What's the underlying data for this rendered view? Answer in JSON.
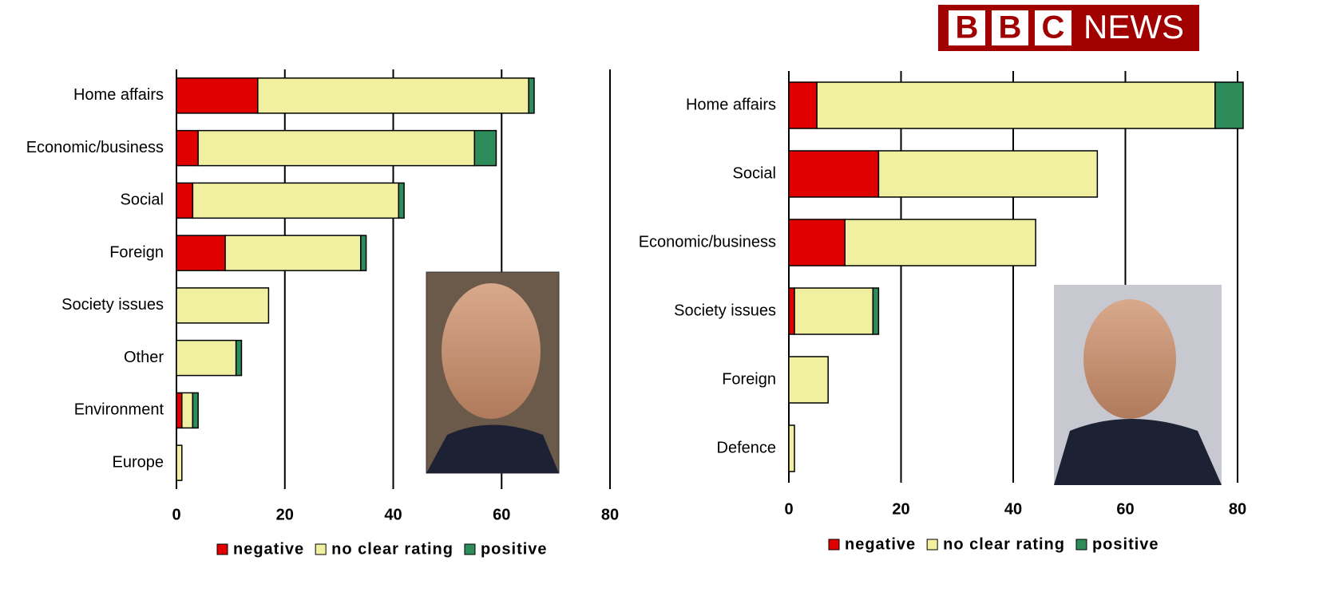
{
  "header": {
    "logo_boxes": [
      "B",
      "B",
      "C"
    ],
    "logo_word": "NEWS"
  },
  "chart_data": [
    {
      "type": "stacked-barh",
      "categories": [
        "Home affairs",
        "Economic/business",
        "Social",
        "Foreign",
        "Society issues",
        "Other",
        "Environment",
        "Europe"
      ],
      "series": [
        {
          "name": "negative",
          "color": "#e00000",
          "values": [
            15,
            4,
            3,
            9,
            0,
            0,
            1,
            0
          ]
        },
        {
          "name": "no clear rating",
          "color": "#f0f0a0",
          "values": [
            50,
            51,
            38,
            25,
            17,
            11,
            2,
            1
          ]
        },
        {
          "name": "positive",
          "color": "#2e8b5a",
          "values": [
            1,
            4,
            1,
            1,
            0,
            1,
            1,
            0
          ]
        }
      ],
      "xlim": [
        0,
        80
      ],
      "xticks": [
        0,
        20,
        40,
        60,
        80
      ],
      "grid": true
    },
    {
      "type": "stacked-barh",
      "categories": [
        "Home affairs",
        "Social",
        "Economic/business",
        "Society issues",
        "Foreign",
        "Defence"
      ],
      "series": [
        {
          "name": "negative",
          "color": "#e00000",
          "values": [
            5,
            16,
            10,
            1,
            0,
            0
          ]
        },
        {
          "name": "no clear rating",
          "color": "#f0f0a0",
          "values": [
            71,
            39,
            34,
            14,
            7,
            1
          ]
        },
        {
          "name": "positive",
          "color": "#2e8b5a",
          "values": [
            5,
            0,
            0,
            1,
            0,
            0
          ]
        }
      ],
      "xlim": [
        0,
        81
      ],
      "xticks": [
        0,
        20,
        40,
        60,
        80
      ],
      "grid": true
    }
  ]
}
